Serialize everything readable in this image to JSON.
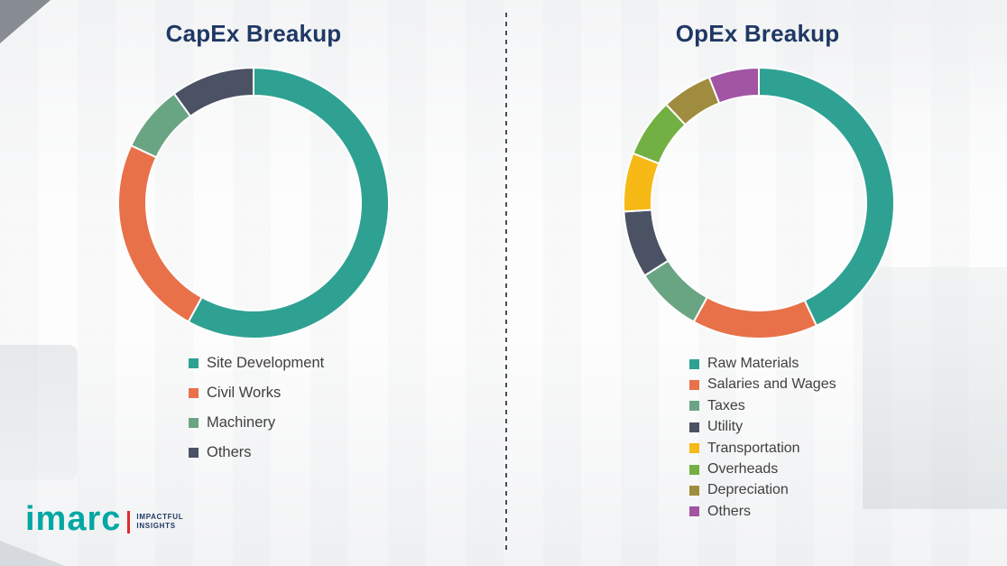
{
  "theme": {
    "heading_color": "#1F3864",
    "brand_teal": "#00A7A4",
    "brand_red": "#E02B2B",
    "legend_text_color": "#404040"
  },
  "branding": {
    "logo_text": "imarc",
    "tagline_line1": "IMPACTFUL",
    "tagline_line2": "INSIGHTS"
  },
  "chart_data": [
    {
      "type": "pie",
      "donut": true,
      "donut_hole": 0.79,
      "title": "CapEx Breakup",
      "legend_position": "bottom",
      "categories": [
        "Site Development",
        "Civil Works",
        "Machinery",
        "Others"
      ],
      "values": [
        58,
        24,
        8,
        10
      ],
      "colors": [
        "#2EA193",
        "#E8714A",
        "#6AA583",
        "#4A5263"
      ]
    },
    {
      "type": "pie",
      "donut": true,
      "donut_hole": 0.79,
      "title": "OpEx Breakup",
      "legend_position": "bottom",
      "categories": [
        "Raw Materials",
        "Salaries and Wages",
        "Taxes",
        "Utility",
        "Transportation",
        "Overheads",
        "Depreciation",
        "Others"
      ],
      "values": [
        43,
        15,
        8,
        8,
        7,
        7,
        6,
        6
      ],
      "colors": [
        "#2EA193",
        "#E8714A",
        "#6AA583",
        "#4A5263",
        "#F6B915",
        "#72B043",
        "#A08C3E",
        "#A155A3"
      ]
    }
  ]
}
